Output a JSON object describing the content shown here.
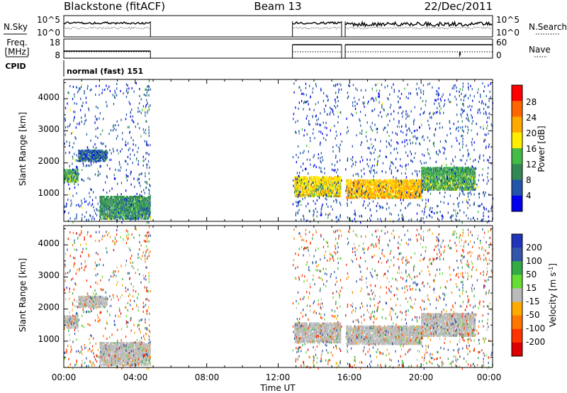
{
  "header": {
    "radar": "Blackstone (fitACF)",
    "beam": "Beam 13",
    "date": "22/Dec/2011"
  },
  "nsky_panel": {
    "left_label": "N.Sky",
    "left_ticks": [
      "10^5",
      "10^0"
    ],
    "right_label": "N.Search",
    "right_ticks": [
      "10^5",
      "10^0"
    ]
  },
  "freq_panel": {
    "left_label_1": "Freq.",
    "left_label_2": "[MHz]",
    "left_ticks": [
      "18",
      "8"
    ],
    "right_label": "Nave",
    "right_ticks": [
      "60",
      "0"
    ]
  },
  "cpid": {
    "label": "CPID",
    "value": "normal (fast) 151"
  },
  "axes": {
    "ylabel": "Slant Range [km]",
    "xlabel": "Time UT",
    "yticks": [
      "1000",
      "2000",
      "3000",
      "4000"
    ],
    "xticks": [
      "00:00",
      "04:00",
      "08:00",
      "12:00",
      "16:00",
      "20:00",
      "00:00"
    ]
  },
  "power_colorbar": {
    "label": "Power [dB]",
    "ticks": [
      "28",
      "24",
      "20",
      "16",
      "12",
      "8",
      "4"
    ],
    "colors": [
      "#ff0000",
      "#ff6600",
      "#ffaa00",
      "#ffee00",
      "#44bb44",
      "#338855",
      "#2255aa",
      "#0000ee"
    ]
  },
  "velocity_colorbar": {
    "label": "Velocity [m s",
    "label_sup": "-1",
    "label_end": "]",
    "ticks": [
      "200",
      "100",
      "50",
      "15",
      "-15",
      "-50",
      "-100",
      "-200"
    ],
    "colors": [
      "#2233bb",
      "#3355aa",
      "#33aa44",
      "#66dd33",
      "#bbbbbb",
      "#ffaa00",
      "#ff7700",
      "#ff3300",
      "#dd0000"
    ]
  },
  "chart_data": {
    "type": "heatmap",
    "title": "Blackstone (fitACF)",
    "xlabel": "Time UT",
    "ylabel": "Slant Range [km]",
    "xlim": [
      0,
      24
    ],
    "ylim": [
      180,
      4600
    ],
    "x_unit": "hours UT",
    "observing_intervals_hours": [
      [
        0,
        4.85
      ],
      [
        12.8,
        15.55
      ],
      [
        15.75,
        24
      ]
    ],
    "echo_bands": [
      {
        "start_h": 0.0,
        "end_h": 0.8,
        "range_km": [
          1450,
          1850
        ],
        "power_db": 12,
        "velocity": 0
      },
      {
        "start_h": 0.8,
        "end_h": 2.4,
        "range_km": [
          2100,
          2450
        ],
        "power_db": 6,
        "velocity": 0
      },
      {
        "start_h": 2.0,
        "end_h": 4.85,
        "range_km": [
          300,
          1000
        ],
        "power_db": 10,
        "velocity": 0
      },
      {
        "start_h": 12.9,
        "end_h": 15.5,
        "range_km": [
          1000,
          1600
        ],
        "power_db": 18,
        "velocity": 0
      },
      {
        "start_h": 15.8,
        "end_h": 20.0,
        "range_km": [
          950,
          1500
        ],
        "power_db": 20,
        "velocity": 0
      },
      {
        "start_h": 20.0,
        "end_h": 23.0,
        "range_km": [
          1200,
          1900
        ],
        "power_db": 12,
        "velocity": 0
      }
    ]
  }
}
